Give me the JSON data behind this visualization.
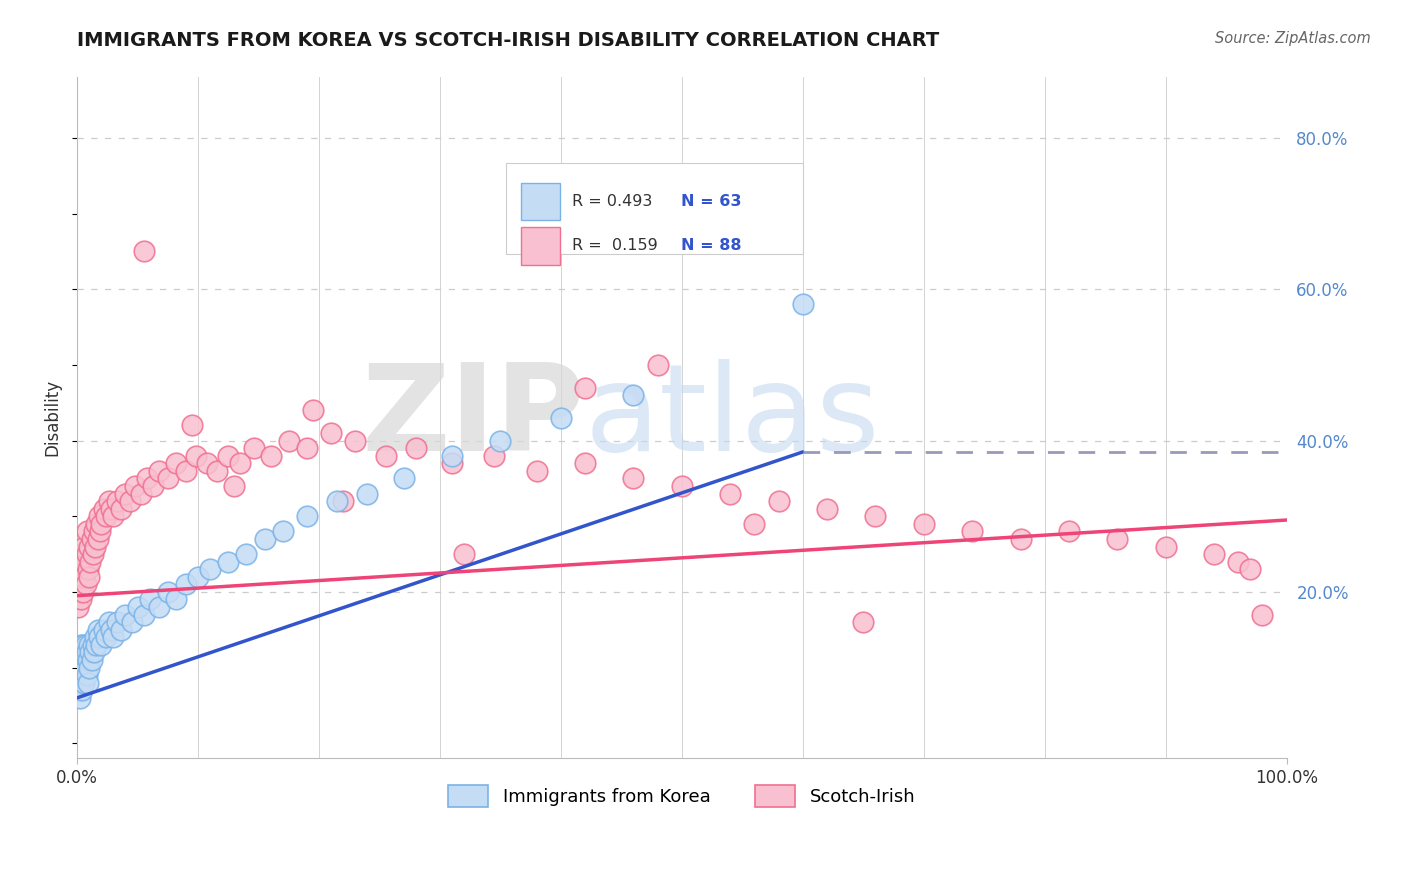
{
  "title": "IMMIGRANTS FROM KOREA VS SCOTCH-IRISH DISABILITY CORRELATION CHART",
  "source_text": "Source: ZipAtlas.com",
  "ylabel": "Disability",
  "xlim": [
    0.0,
    1.0
  ],
  "ylim": [
    -0.02,
    0.88
  ],
  "grid_color": "#cccccc",
  "background_color": "#ffffff",
  "watermark_zip": "ZIP",
  "watermark_atlas": "atlas",
  "korea_edge_color": "#7ab3e8",
  "korea_face_color": "#c5dcf5",
  "scotch_edge_color": "#f07090",
  "scotch_face_color": "#f8c0d0",
  "trend_korea_color": "#3355cc",
  "trend_scotch_color": "#ee4477",
  "trend_dashed_color": "#9999bb",
  "R_korea": 0.493,
  "N_korea": 63,
  "R_scotch": 0.159,
  "N_scotch": 88,
  "legend_text_color": "#3355cc",
  "korea_scatter_x": [
    0.001,
    0.001,
    0.002,
    0.002,
    0.002,
    0.003,
    0.003,
    0.003,
    0.004,
    0.004,
    0.005,
    0.005,
    0.005,
    0.006,
    0.006,
    0.007,
    0.007,
    0.008,
    0.008,
    0.009,
    0.009,
    0.01,
    0.01,
    0.011,
    0.012,
    0.013,
    0.014,
    0.015,
    0.016,
    0.017,
    0.018,
    0.02,
    0.022,
    0.024,
    0.026,
    0.028,
    0.03,
    0.033,
    0.036,
    0.04,
    0.045,
    0.05,
    0.055,
    0.06,
    0.068,
    0.075,
    0.082,
    0.09,
    0.1,
    0.11,
    0.125,
    0.14,
    0.155,
    0.17,
    0.19,
    0.215,
    0.24,
    0.27,
    0.31,
    0.35,
    0.4,
    0.46,
    0.6
  ],
  "korea_scatter_y": [
    0.07,
    0.09,
    0.06,
    0.1,
    0.12,
    0.08,
    0.11,
    0.13,
    0.07,
    0.1,
    0.09,
    0.11,
    0.13,
    0.08,
    0.12,
    0.1,
    0.13,
    0.09,
    0.12,
    0.08,
    0.11,
    0.1,
    0.13,
    0.12,
    0.11,
    0.13,
    0.12,
    0.14,
    0.13,
    0.15,
    0.14,
    0.13,
    0.15,
    0.14,
    0.16,
    0.15,
    0.14,
    0.16,
    0.15,
    0.17,
    0.16,
    0.18,
    0.17,
    0.19,
    0.18,
    0.2,
    0.19,
    0.21,
    0.22,
    0.23,
    0.24,
    0.25,
    0.27,
    0.28,
    0.3,
    0.32,
    0.33,
    0.35,
    0.38,
    0.4,
    0.43,
    0.46,
    0.58
  ],
  "scotch_scatter_x": [
    0.001,
    0.001,
    0.002,
    0.002,
    0.003,
    0.003,
    0.004,
    0.004,
    0.005,
    0.005,
    0.006,
    0.006,
    0.007,
    0.008,
    0.008,
    0.009,
    0.01,
    0.01,
    0.011,
    0.012,
    0.013,
    0.014,
    0.015,
    0.016,
    0.017,
    0.018,
    0.019,
    0.02,
    0.022,
    0.024,
    0.026,
    0.028,
    0.03,
    0.033,
    0.036,
    0.04,
    0.044,
    0.048,
    0.053,
    0.058,
    0.063,
    0.068,
    0.075,
    0.082,
    0.09,
    0.098,
    0.107,
    0.116,
    0.125,
    0.135,
    0.146,
    0.16,
    0.175,
    0.19,
    0.21,
    0.23,
    0.255,
    0.28,
    0.31,
    0.345,
    0.38,
    0.42,
    0.46,
    0.5,
    0.54,
    0.58,
    0.62,
    0.66,
    0.7,
    0.74,
    0.78,
    0.82,
    0.86,
    0.9,
    0.94,
    0.96,
    0.97,
    0.98,
    0.13,
    0.22,
    0.32,
    0.56,
    0.65,
    0.095,
    0.195,
    0.42,
    0.48,
    0.055
  ],
  "scotch_scatter_y": [
    0.18,
    0.22,
    0.2,
    0.24,
    0.19,
    0.23,
    0.21,
    0.25,
    0.2,
    0.24,
    0.22,
    0.26,
    0.21,
    0.25,
    0.28,
    0.23,
    0.22,
    0.26,
    0.24,
    0.27,
    0.25,
    0.28,
    0.26,
    0.29,
    0.27,
    0.3,
    0.28,
    0.29,
    0.31,
    0.3,
    0.32,
    0.31,
    0.3,
    0.32,
    0.31,
    0.33,
    0.32,
    0.34,
    0.33,
    0.35,
    0.34,
    0.36,
    0.35,
    0.37,
    0.36,
    0.38,
    0.37,
    0.36,
    0.38,
    0.37,
    0.39,
    0.38,
    0.4,
    0.39,
    0.41,
    0.4,
    0.38,
    0.39,
    0.37,
    0.38,
    0.36,
    0.37,
    0.35,
    0.34,
    0.33,
    0.32,
    0.31,
    0.3,
    0.29,
    0.28,
    0.27,
    0.28,
    0.27,
    0.26,
    0.25,
    0.24,
    0.23,
    0.17,
    0.34,
    0.32,
    0.25,
    0.29,
    0.16,
    0.42,
    0.44,
    0.47,
    0.5,
    0.65
  ],
  "korea_trend_x0": 0.0,
  "korea_trend_y0": 0.06,
  "korea_trend_x1": 0.6,
  "korea_trend_y1": 0.385,
  "korea_trend_dashed_x1": 1.0,
  "korea_trend_dashed_y1": 0.385,
  "scotch_trend_x0": 0.0,
  "scotch_trend_y0": 0.195,
  "scotch_trend_x1": 1.0,
  "scotch_trend_y1": 0.295
}
